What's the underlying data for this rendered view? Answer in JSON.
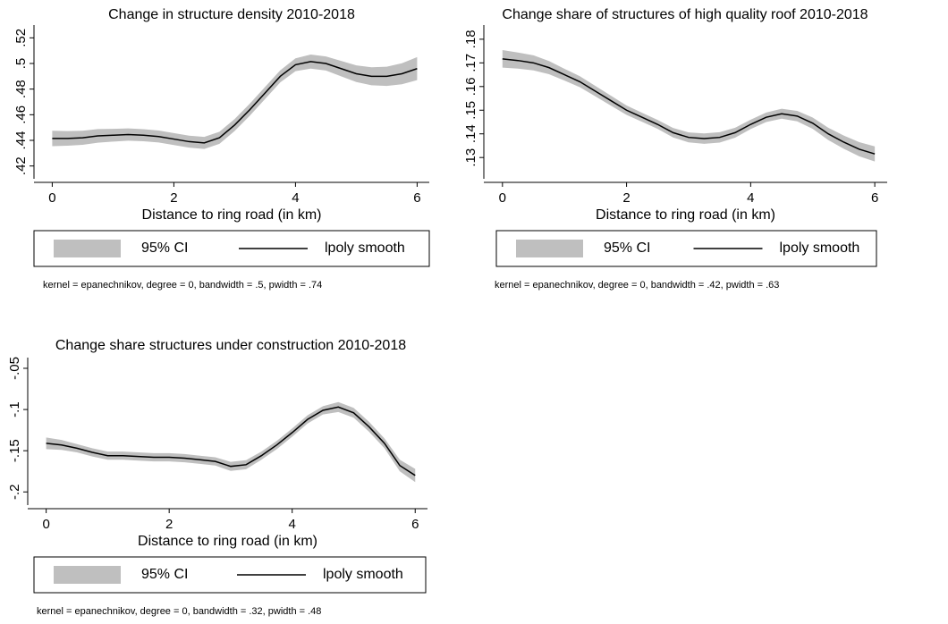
{
  "chart_data": [
    {
      "type": "line",
      "title": "Change in structure density 2010-2018",
      "xlabel": "Distance to ring road (in km)",
      "note": "kernel = epanechnikov, degree = 0, bandwidth = .5, pwidth = .74",
      "x": [
        0,
        0.25,
        0.5,
        0.75,
        1,
        1.25,
        1.5,
        1.75,
        2,
        2.25,
        2.5,
        2.75,
        3,
        3.25,
        3.5,
        3.75,
        4,
        4.25,
        4.5,
        4.75,
        5,
        5.25,
        5.5,
        5.75,
        6
      ],
      "series": [
        {
          "name": "95% CI",
          "color": "#bfbfbf",
          "lower": [
            0.4355,
            0.4358,
            0.4365,
            0.4382,
            0.439,
            0.4397,
            0.4393,
            0.4383,
            0.4363,
            0.4343,
            0.4333,
            0.4373,
            0.4473,
            0.4593,
            0.4723,
            0.4853,
            0.494,
            0.496,
            0.4945,
            0.49,
            0.4855,
            0.483,
            0.4825,
            0.4838,
            0.487
          ],
          "upper": [
            0.4475,
            0.4472,
            0.4475,
            0.4488,
            0.449,
            0.4493,
            0.4487,
            0.4477,
            0.4457,
            0.4437,
            0.4427,
            0.4467,
            0.4567,
            0.4687,
            0.4817,
            0.4947,
            0.504,
            0.507,
            0.5055,
            0.502,
            0.4985,
            0.497,
            0.4975,
            0.5002,
            0.505
          ]
        },
        {
          "name": "lpoly smooth",
          "color": "#000000",
          "values": [
            0.4415,
            0.4415,
            0.442,
            0.4435,
            0.444,
            0.4445,
            0.444,
            0.443,
            0.441,
            0.439,
            0.438,
            0.442,
            0.452,
            0.464,
            0.477,
            0.49,
            0.499,
            0.5015,
            0.5,
            0.496,
            0.492,
            0.49,
            0.49,
            0.492,
            0.496
          ]
        }
      ],
      "xlim": [
        -0.3,
        6.2
      ],
      "ylim": [
        0.41,
        0.53
      ],
      "xticks": [
        0,
        2,
        4,
        6
      ],
      "yticks": [
        {
          "value": 0.42,
          "label": ".42"
        },
        {
          "value": 0.44,
          "label": ".44"
        },
        {
          "value": 0.46,
          "label": ".46"
        },
        {
          "value": 0.48,
          "label": ".48"
        },
        {
          "value": 0.5,
          "label": ".5"
        },
        {
          "value": 0.52,
          "label": ".52"
        }
      ]
    },
    {
      "type": "line",
      "title": "Change share of structures of high quality roof 2010-2018",
      "xlabel": "Distance to ring road (in km)",
      "note": "kernel = epanechnikov, degree = 0, bandwidth = .42, pwidth = .63",
      "x": [
        0,
        0.25,
        0.5,
        0.75,
        1,
        1.25,
        1.5,
        1.75,
        2,
        2.25,
        2.5,
        2.75,
        3,
        3.25,
        3.5,
        3.75,
        4,
        4.25,
        4.5,
        4.75,
        5,
        5.25,
        5.5,
        5.75,
        6
      ],
      "series": [
        {
          "name": "95% CI",
          "color": "#bfbfbf",
          "lower": [
            0.168,
            0.1676,
            0.1668,
            0.1652,
            0.1625,
            0.1597,
            0.1558,
            0.1519,
            0.148,
            0.1451,
            0.1421,
            0.1385,
            0.1364,
            0.1358,
            0.1363,
            0.1384,
            0.142,
            0.145,
            0.1464,
            0.1453,
            0.1421,
            0.1374,
            0.1337,
            0.1305,
            0.1283
          ],
          "upper": [
            0.1754,
            0.1744,
            0.1732,
            0.1708,
            0.1675,
            0.1643,
            0.1602,
            0.1561,
            0.152,
            0.1489,
            0.1459,
            0.1425,
            0.1406,
            0.1402,
            0.1407,
            0.1426,
            0.146,
            0.149,
            0.1506,
            0.1497,
            0.1469,
            0.1426,
            0.1393,
            0.1365,
            0.1347
          ]
        },
        {
          "name": "lpoly smooth",
          "color": "#000000",
          "values": [
            0.1717,
            0.171,
            0.17,
            0.168,
            0.165,
            0.162,
            0.158,
            0.154,
            0.15,
            0.147,
            0.144,
            0.1405,
            0.1385,
            0.138,
            0.1385,
            0.1405,
            0.144,
            0.147,
            0.1485,
            0.1475,
            0.1445,
            0.14,
            0.1365,
            0.1335,
            0.1315
          ]
        }
      ],
      "xlim": [
        -0.3,
        6.2
      ],
      "ylim": [
        0.121,
        0.186
      ],
      "xticks": [
        0,
        2,
        4,
        6
      ],
      "yticks": [
        {
          "value": 0.13,
          "label": ".13"
        },
        {
          "value": 0.14,
          "label": ".14"
        },
        {
          "value": 0.15,
          "label": ".15"
        },
        {
          "value": 0.16,
          "label": ".16"
        },
        {
          "value": 0.17,
          "label": ".17"
        },
        {
          "value": 0.18,
          "label": ".18"
        }
      ]
    },
    {
      "type": "line",
      "title": "Change share structures under construction 2010-2018",
      "xlabel": "Distance to ring road (in km)",
      "note": "kernel = epanechnikov, degree = 0, bandwidth = .32, pwidth = .48",
      "x": [
        0,
        0.25,
        0.5,
        0.75,
        1,
        1.25,
        1.5,
        1.75,
        2,
        2.25,
        2.5,
        2.75,
        3,
        3.25,
        3.5,
        3.75,
        4,
        4.25,
        4.5,
        4.75,
        5,
        5.25,
        5.5,
        5.75,
        6
      ],
      "series": [
        {
          "name": "95% CI",
          "color": "#bfbfbf",
          "lower": [
            -0.148,
            -0.149,
            -0.152,
            -0.157,
            -0.161,
            -0.161,
            -0.162,
            -0.163,
            -0.163,
            -0.164,
            -0.166,
            -0.168,
            -0.1745,
            -0.1725,
            -0.161,
            -0.148,
            -0.133,
            -0.117,
            -0.106,
            -0.103,
            -0.11,
            -0.127,
            -0.147,
            -0.175,
            -0.188
          ],
          "upper": [
            -0.134,
            -0.137,
            -0.142,
            -0.147,
            -0.151,
            -0.151,
            -0.152,
            -0.153,
            -0.153,
            -0.154,
            -0.156,
            -0.158,
            -0.1635,
            -0.1615,
            -0.151,
            -0.138,
            -0.123,
            -0.107,
            -0.096,
            -0.091,
            -0.098,
            -0.115,
            -0.135,
            -0.161,
            -0.172
          ]
        },
        {
          "name": "lpoly smooth",
          "color": "#000000",
          "values": [
            -0.141,
            -0.143,
            -0.147,
            -0.152,
            -0.156,
            -0.156,
            -0.157,
            -0.158,
            -0.158,
            -0.159,
            -0.161,
            -0.163,
            -0.169,
            -0.167,
            -0.156,
            -0.143,
            -0.128,
            -0.112,
            -0.101,
            -0.097,
            -0.104,
            -0.121,
            -0.141,
            -0.168,
            -0.18
          ]
        }
      ],
      "xlim": [
        -0.3,
        6.2
      ],
      "ylim": [
        -0.216,
        -0.037
      ],
      "xticks": [
        0,
        2,
        4,
        6
      ],
      "yticks": [
        {
          "value": -0.2,
          "label": "-.2"
        },
        {
          "value": -0.15,
          "label": "-.15"
        },
        {
          "value": -0.1,
          "label": "-.1"
        },
        {
          "value": -0.05,
          "label": "-.05"
        }
      ]
    }
  ]
}
